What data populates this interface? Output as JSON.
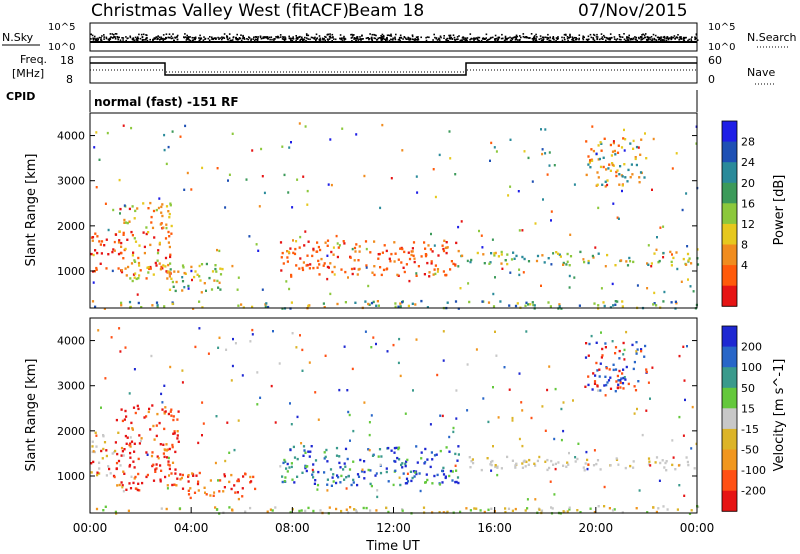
{
  "header": {
    "site": "Christmas Valley West (fitACF)",
    "beam": "Beam 18",
    "date": "07/Nov/2015"
  },
  "top_panels": {
    "nsky_label": "N.Sky",
    "nsearch_label": "N.Search",
    "nsky_ticks": [
      "10^5",
      "10^0"
    ],
    "nsearch_ticks": [
      "10^5",
      "10^0"
    ],
    "freq_label_1": "Freq.",
    "freq_label_2": "[MHz]",
    "freq_ticks": [
      "18",
      "8"
    ],
    "nave_label": "Nave",
    "nave_ticks": [
      "60",
      "0"
    ],
    "cpid_label": "CPID",
    "cpid_text": "normal (fast) -151 RF"
  },
  "chart_data": [
    {
      "type": "heatmap",
      "name": "power-panel",
      "ylabel": "Slant Range [km]",
      "xlabel": "",
      "yticks": [
        "4000",
        "3000",
        "2000",
        "1000"
      ],
      "ylim": [
        180,
        4500
      ],
      "colorbar_label": "Power [dB]",
      "colorbar_ticks": [
        "28",
        "24",
        "20",
        "16",
        "12",
        "8",
        "4"
      ],
      "colors": [
        "#1e1ee6",
        "#1e50b4",
        "#2a8a9a",
        "#3c9a5a",
        "#8cc83c",
        "#e6c81e",
        "#f08c1e",
        "#ff5a0a",
        "#e61414"
      ]
    },
    {
      "type": "heatmap",
      "name": "velocity-panel",
      "ylabel": "Slant Range [km]",
      "xlabel": "Time UT",
      "yticks": [
        "4000",
        "3000",
        "2000",
        "1000"
      ],
      "ylim": [
        180,
        4500
      ],
      "xticks": [
        "00:00",
        "04:00",
        "08:00",
        "12:00",
        "16:00",
        "20:00",
        "00:00"
      ],
      "colorbar_label": "Velocity [m s^-1]",
      "colorbar_ticks": [
        "200",
        "100",
        "50",
        "15",
        "-15",
        "-50",
        "-100",
        "-200"
      ],
      "colors": [
        "#1e28d2",
        "#2866c8",
        "#3a9a8c",
        "#64c83c",
        "#c8c8c8",
        "#dcb428",
        "#f0961e",
        "#ff5014",
        "#e61414"
      ]
    }
  ]
}
